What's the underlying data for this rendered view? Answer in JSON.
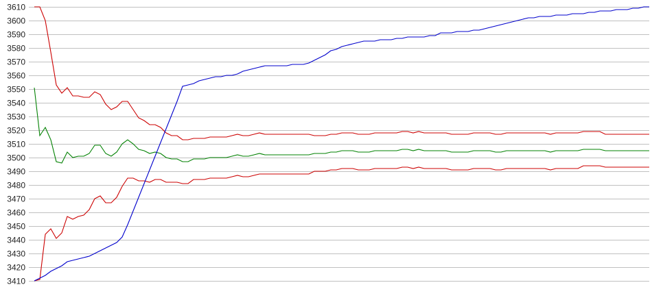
{
  "chart_data": {
    "type": "line",
    "title": "",
    "xlabel": "",
    "ylabel": "",
    "ylim": [
      3410,
      3610
    ],
    "yticks": [
      "3410",
      "3420",
      "3430",
      "3440",
      "3450",
      "3460",
      "3470",
      "3480",
      "3490",
      "3500",
      "3510",
      "3520",
      "3530",
      "3540",
      "3550",
      "3560",
      "3570",
      "3580",
      "3590",
      "3600",
      "3610"
    ],
    "grid": "horizontal",
    "legend": "none",
    "series": [
      {
        "color": "#cc0000",
        "values": [
          3610,
          3610,
          3600,
          3577,
          3553,
          3547,
          3551,
          3545,
          3545,
          3544,
          3544,
          3548,
          3546,
          3539,
          3535,
          3537,
          3541,
          3541,
          3535,
          3529,
          3527,
          3524,
          3524,
          3522,
          3518,
          3516,
          3516,
          3513,
          3513,
          3514,
          3514,
          3514,
          3515,
          3515,
          3515,
          3515,
          3516,
          3517,
          3516,
          3516,
          3517,
          3518,
          3517,
          3517,
          3517,
          3517,
          3517,
          3517,
          3517,
          3517,
          3517,
          3516,
          3516,
          3516,
          3517,
          3517,
          3518,
          3518,
          3518,
          3517,
          3517,
          3517,
          3518,
          3518,
          3518,
          3518,
          3518,
          3519,
          3519,
          3518,
          3519,
          3518,
          3518,
          3518,
          3518,
          3518,
          3517,
          3517,
          3517,
          3517,
          3518,
          3518,
          3518,
          3518,
          3517,
          3517,
          3518,
          3518,
          3518,
          3518,
          3518,
          3518,
          3518,
          3518,
          3517,
          3518,
          3518,
          3518,
          3518,
          3518,
          3519,
          3519,
          3519,
          3519,
          3517,
          3517,
          3517,
          3517,
          3517,
          3517,
          3517,
          3517,
          3517
        ]
      },
      {
        "color": "#008000",
        "values": [
          3551,
          3516,
          3522,
          3513,
          3497,
          3496,
          3504,
          3500,
          3501,
          3501,
          3503,
          3509,
          3509,
          3503,
          3501,
          3504,
          3510,
          3513,
          3510,
          3506,
          3505,
          3503,
          3504,
          3503,
          3500,
          3499,
          3499,
          3497,
          3497,
          3499,
          3499,
          3499,
          3500,
          3500,
          3500,
          3500,
          3501,
          3502,
          3501,
          3501,
          3502,
          3503,
          3502,
          3502,
          3502,
          3502,
          3502,
          3502,
          3502,
          3502,
          3502,
          3503,
          3503,
          3503,
          3504,
          3504,
          3505,
          3505,
          3505,
          3504,
          3504,
          3504,
          3505,
          3505,
          3505,
          3505,
          3505,
          3506,
          3506,
          3505,
          3506,
          3505,
          3505,
          3505,
          3505,
          3505,
          3504,
          3504,
          3504,
          3504,
          3505,
          3505,
          3505,
          3505,
          3504,
          3504,
          3505,
          3505,
          3505,
          3505,
          3505,
          3505,
          3505,
          3505,
          3504,
          3505,
          3505,
          3505,
          3505,
          3505,
          3506,
          3506,
          3506,
          3506,
          3505,
          3505,
          3505,
          3505,
          3505,
          3505,
          3505,
          3505,
          3505
        ]
      },
      {
        "color": "#cc0000",
        "values": [
          3410,
          3411,
          3444,
          3448,
          3441,
          3445,
          3457,
          3455,
          3457,
          3458,
          3462,
          3470,
          3472,
          3467,
          3467,
          3471,
          3479,
          3485,
          3485,
          3483,
          3483,
          3482,
          3484,
          3484,
          3482,
          3482,
          3482,
          3481,
          3481,
          3484,
          3484,
          3484,
          3485,
          3485,
          3485,
          3485,
          3486,
          3487,
          3486,
          3486,
          3487,
          3488,
          3488,
          3488,
          3488,
          3488,
          3488,
          3488,
          3488,
          3488,
          3488,
          3490,
          3490,
          3490,
          3491,
          3491,
          3492,
          3492,
          3492,
          3491,
          3491,
          3491,
          3492,
          3492,
          3492,
          3492,
          3492,
          3493,
          3493,
          3492,
          3493,
          3492,
          3492,
          3492,
          3492,
          3492,
          3491,
          3491,
          3491,
          3491,
          3492,
          3492,
          3492,
          3492,
          3491,
          3491,
          3492,
          3492,
          3492,
          3492,
          3492,
          3492,
          3492,
          3492,
          3491,
          3492,
          3492,
          3492,
          3492,
          3492,
          3494,
          3494,
          3494,
          3494,
          3493,
          3493,
          3493,
          3493,
          3493,
          3493,
          3493,
          3493,
          3493
        ]
      },
      {
        "color": "#0000cc",
        "values": [
          3410,
          3412,
          3414,
          3417,
          3419,
          3421,
          3424,
          3425,
          3426,
          3427,
          3428,
          3430,
          3432,
          3434,
          3436,
          3438,
          3442,
          3451,
          3461,
          3471,
          3481,
          3491,
          3501,
          3511,
          3521,
          3531,
          3541,
          3552,
          3553,
          3554,
          3556,
          3557,
          3558,
          3559,
          3559,
          3560,
          3560,
          3561,
          3563,
          3564,
          3565,
          3566,
          3567,
          3567,
          3567,
          3567,
          3567,
          3568,
          3568,
          3568,
          3569,
          3571,
          3573,
          3575,
          3578,
          3579,
          3581,
          3582,
          3583,
          3584,
          3585,
          3585,
          3585,
          3586,
          3586,
          3586,
          3587,
          3587,
          3588,
          3588,
          3588,
          3588,
          3589,
          3589,
          3591,
          3591,
          3591,
          3592,
          3592,
          3592,
          3593,
          3593,
          3594,
          3595,
          3596,
          3597,
          3598,
          3599,
          3600,
          3601,
          3602,
          3602,
          3603,
          3603,
          3603,
          3604,
          3604,
          3604,
          3605,
          3605,
          3605,
          3606,
          3606,
          3607,
          3607,
          3607,
          3608,
          3608,
          3608,
          3609,
          3609,
          3610,
          3610
        ]
      }
    ],
    "colors": {
      "grid": "#c0c0c0",
      "background": "#ffffff"
    }
  }
}
